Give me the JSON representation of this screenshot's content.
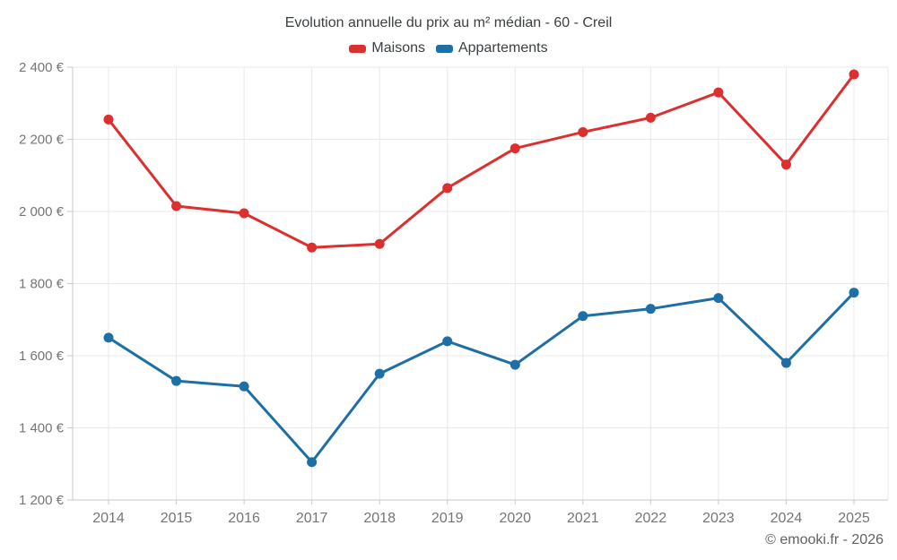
{
  "title": "Evolution annuelle du prix au m² médian - 60 - Creil",
  "footer": "© emooki.fr - 2026",
  "chart_data": {
    "type": "line",
    "title": "Evolution annuelle du prix au m² médian - 60 - Creil",
    "categories": [
      "2014",
      "2015",
      "2016",
      "2017",
      "2018",
      "2019",
      "2020",
      "2021",
      "2022",
      "2023",
      "2024",
      "2025"
    ],
    "series": [
      {
        "name": "Maisons",
        "color": "#dc2f2f",
        "values": [
          2255,
          2015,
          1995,
          1900,
          1910,
          2065,
          2175,
          2220,
          2260,
          2330,
          2130,
          2380
        ]
      },
      {
        "name": "Appartements",
        "color": "#1d6fa5",
        "values": [
          1650,
          1530,
          1515,
          1305,
          1550,
          1640,
          1575,
          1710,
          1730,
          1760,
          1580,
          1775
        ]
      }
    ],
    "xlabel": "",
    "ylabel": "",
    "ylim": [
      1200,
      2400
    ],
    "y_tick_step": 200,
    "y_tick_format": "{value} €",
    "grid": true,
    "legend_position": "top",
    "watermark": "© emooki.fr - 2026"
  }
}
